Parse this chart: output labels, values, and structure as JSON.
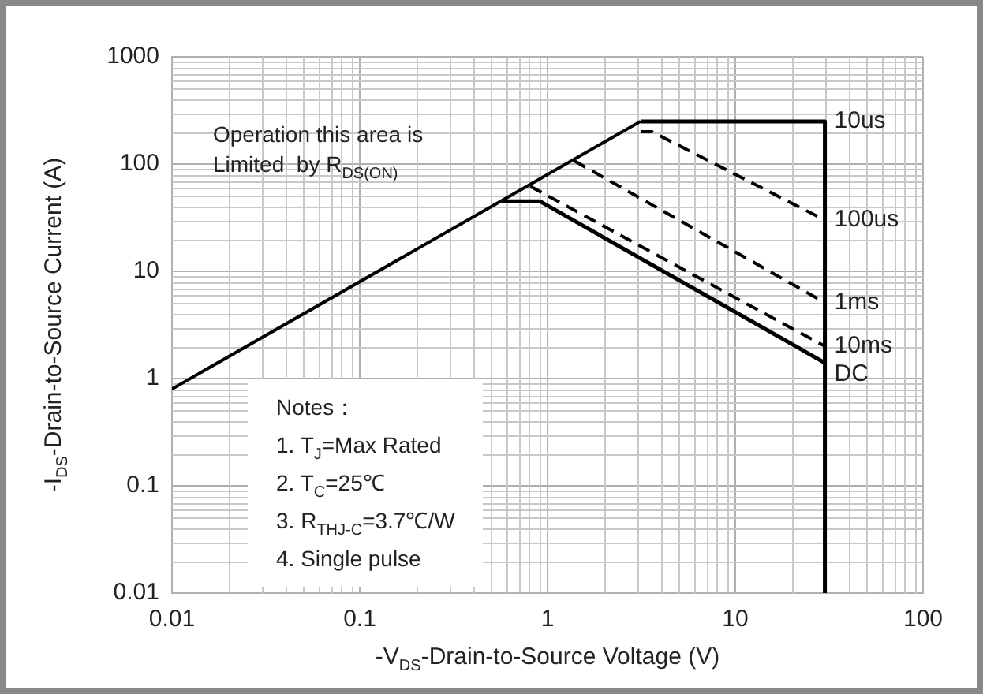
{
  "chart_data": {
    "type": "line",
    "xlabel": "-V$_{DS}$-Drain-to-Source Voltage (V)",
    "ylabel": "-I$_{DS}$-Drain-to-Source Current (A)",
    "log": "xy",
    "xlim": [
      0.01,
      100
    ],
    "ylim": [
      0.01,
      1000
    ],
    "xticks": [
      0.01,
      0.1,
      1,
      10,
      100
    ],
    "yticks": [
      0.01,
      0.1,
      1,
      10,
      100,
      1000
    ],
    "grid": true,
    "legend": false,
    "marker": "none",
    "series": [
      {
        "color": "#000000",
        "line_style": "solid",
        "x": [
          0.01,
          3.13
        ],
        "values": [
          0.8,
          250
        ]
      },
      {
        "name": "10us",
        "color": "#000000",
        "line_style": "solid",
        "x": [
          3.13,
          30,
          30
        ],
        "values": [
          250,
          250,
          0.01
        ]
      },
      {
        "name": "100us",
        "color": "#000000",
        "line_style": "dashed",
        "x": [
          3.13,
          3.6,
          30
        ],
        "values": [
          200,
          200,
          30
        ]
      },
      {
        "name": "1ms",
        "color": "#000000",
        "line_style": "dashed",
        "x": [
          1.39,
          30
        ],
        "values": [
          107,
          5.1
        ]
      },
      {
        "name": "10ms",
        "color": "#000000",
        "line_style": "dashed",
        "x": [
          0.81,
          30
        ],
        "values": [
          62,
          2
        ]
      },
      {
        "name": "DC",
        "color": "#000000",
        "line_style": "solid",
        "x": [
          0.57,
          0.91,
          30
        ],
        "values": [
          45,
          45,
          1.4
        ]
      }
    ],
    "annotations": [
      "Operation this area is\nLimited  by R$_{DS(ON)}$",
      "Notes：",
      "1. T$_{J}$=Max Rated",
      "2. T$_{C}$=25℃",
      "3. R$_{THJ-C}$=3.7℃/W",
      "4. Single pulse"
    ]
  }
}
